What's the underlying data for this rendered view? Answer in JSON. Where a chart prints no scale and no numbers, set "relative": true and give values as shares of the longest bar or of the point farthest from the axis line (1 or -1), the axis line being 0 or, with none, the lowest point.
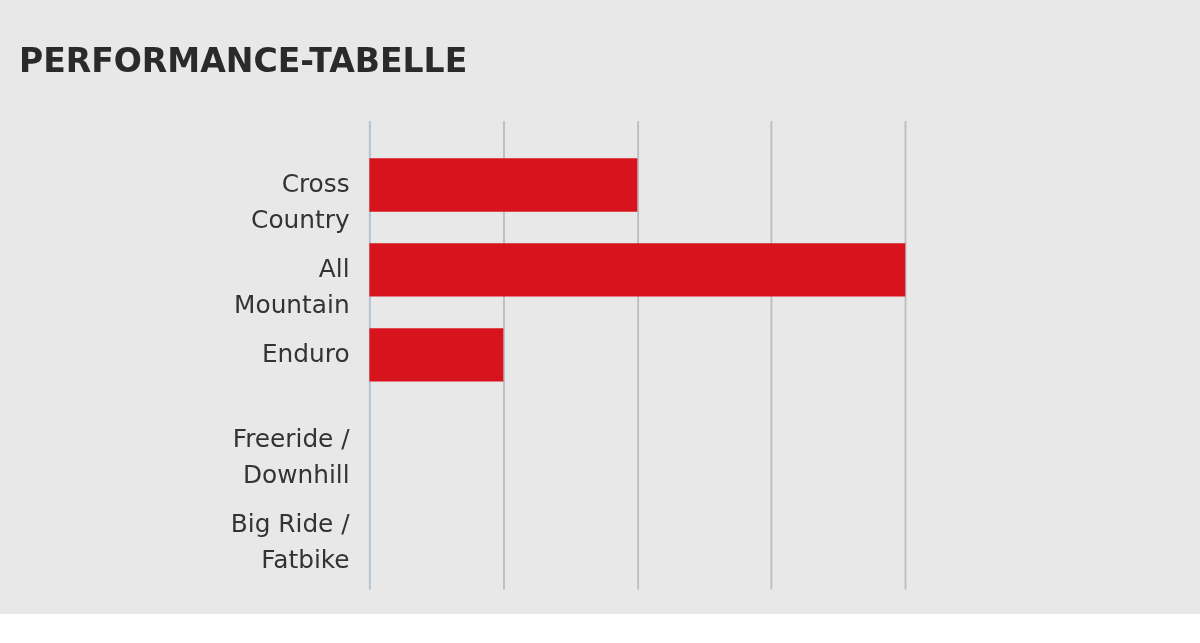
{
  "chart_data": {
    "type": "bar",
    "orientation": "horizontal",
    "relative": true,
    "title": "PERFORMANCE-TABELLE",
    "categories": [
      "Cross Country",
      "All Mountain",
      "Enduro",
      "Freeride / Downhill",
      "Big Ride / Fatbike"
    ],
    "values": [
      0.5,
      1,
      0.25,
      0,
      0
    ],
    "color": "#d7141d",
    "grid": "x"
  }
}
